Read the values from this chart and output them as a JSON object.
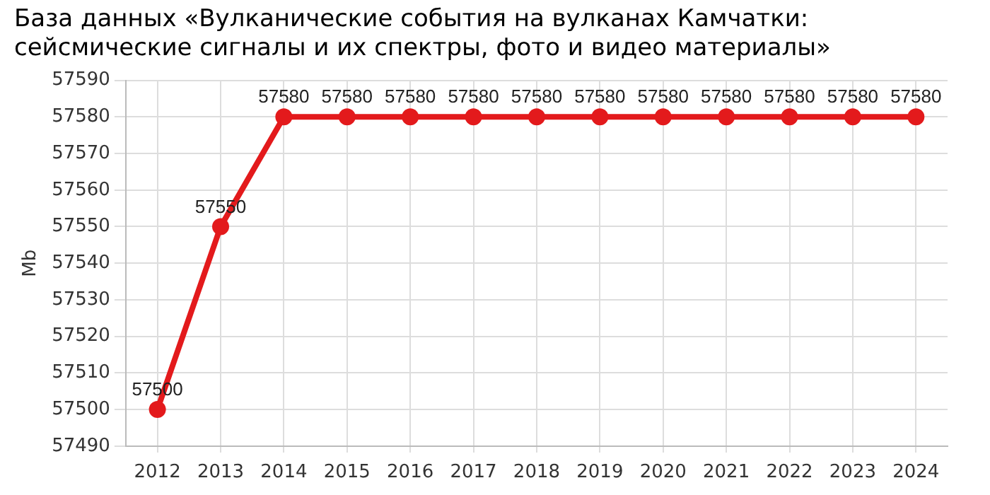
{
  "chart_data": {
    "type": "line",
    "title": "База данных «Вулканические события на вулканах Камчатки:\nсейсмические сигналы и их спектры, фото и видео материалы»",
    "ylabel": "Mb",
    "categories": [
      "2012",
      "2013",
      "2014",
      "2015",
      "2016",
      "2017",
      "2018",
      "2019",
      "2020",
      "2021",
      "2022",
      "2023",
      "2024"
    ],
    "series": [
      {
        "color": "#e31a1c",
        "values": [
          57500,
          57550,
          57580,
          57580,
          57580,
          57580,
          57580,
          57580,
          57580,
          57580,
          57580,
          57580,
          57580
        ]
      }
    ],
    "ylim": [
      57490,
      57590
    ],
    "yticks": [
      57490,
      57500,
      57510,
      57520,
      57530,
      57540,
      57550,
      57560,
      57570,
      57580,
      57590
    ],
    "grid": true,
    "legend": false,
    "marker": "circle",
    "line_style": "solid",
    "data_labels": true
  }
}
